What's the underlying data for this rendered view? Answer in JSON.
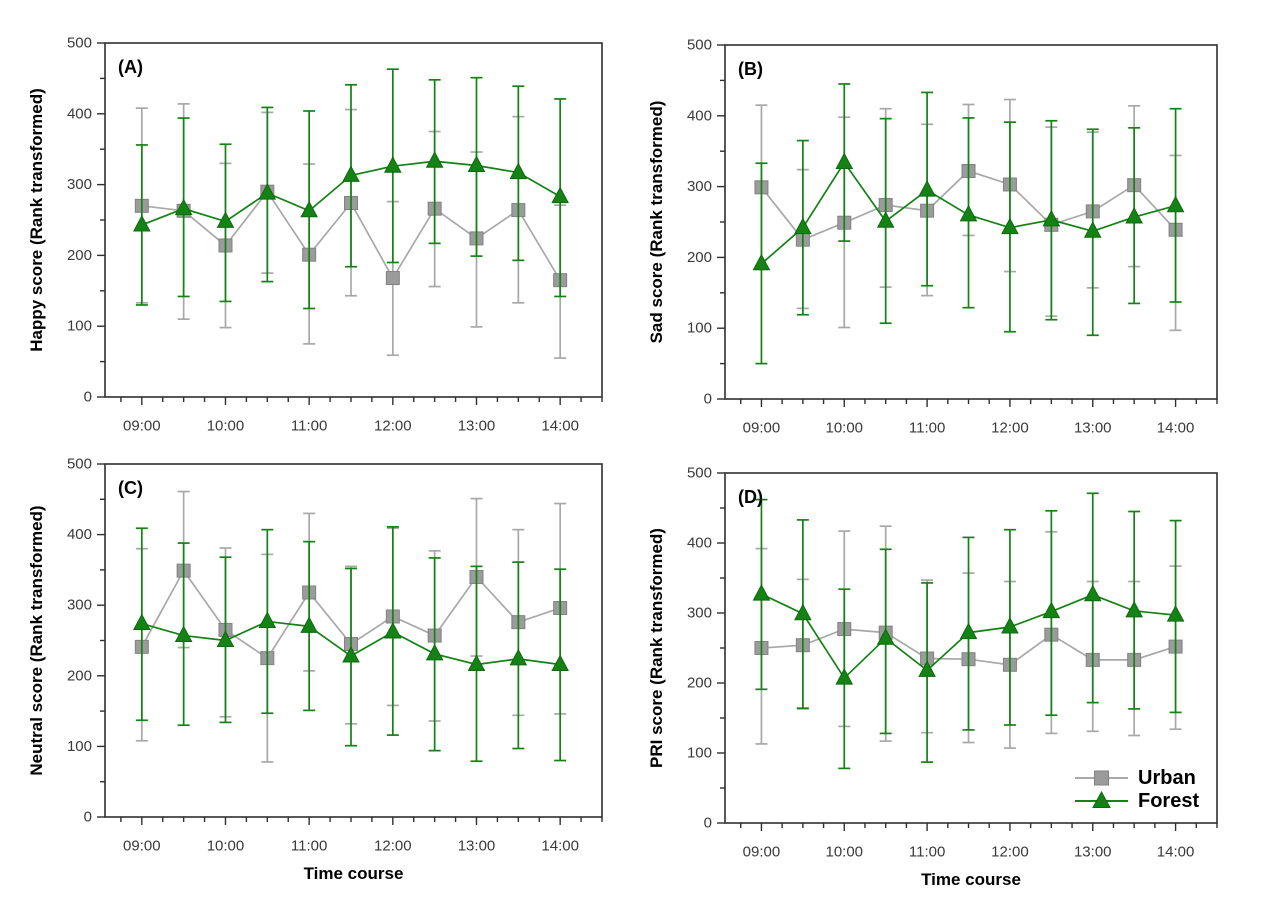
{
  "figure": {
    "background": "#ffffff",
    "colors": {
      "urban": "#9b9b9b",
      "urban_edge": "#828282",
      "forest": "#148214",
      "forest_edge": "#0d6b0d",
      "axis": "#2f2f2f",
      "tick_text": "#3a3a3a",
      "label_text": "#000000"
    },
    "legend": {
      "position": "inside-panel-D-bottom-right",
      "items": [
        {
          "label": "Urban",
          "marker": "square",
          "color": "#9b9b9b"
        },
        {
          "label": "Forest",
          "marker": "triangle",
          "color": "#148214"
        }
      ]
    }
  },
  "chart_data": [
    {
      "type": "line",
      "panel_label": "(A)",
      "ylabel": "Happy score (Rank transformed)",
      "xlabel": "",
      "show_legend": false,
      "ylim": [
        0,
        500
      ],
      "yticks": [
        0,
        100,
        200,
        300,
        400,
        500
      ],
      "x_tick_labels": [
        "09:00",
        "10:00",
        "11:00",
        "12:00",
        "13:00",
        "14:00"
      ],
      "categories": [
        "09:00",
        "09:30",
        "10:00",
        "10:30",
        "11:00",
        "11:30",
        "12:00",
        "12:30",
        "13:00",
        "13:30",
        "14:00"
      ],
      "series": [
        {
          "name": "Urban",
          "marker": "square",
          "color": "#9b9b9b",
          "values": [
            270,
            263,
            214,
            290,
            201,
            274,
            168,
            266,
            224,
            264,
            165
          ],
          "err_low": [
            133,
            110,
            98,
            175,
            75,
            143,
            59,
            156,
            99,
            133,
            55
          ],
          "err_high": [
            408,
            414,
            330,
            402,
            329,
            406,
            276,
            375,
            346,
            396,
            271
          ]
        },
        {
          "name": "Forest",
          "marker": "triangle",
          "color": "#148214",
          "values": [
            243,
            266,
            248,
            288,
            263,
            313,
            326,
            333,
            327,
            317,
            283
          ],
          "err_low": [
            130,
            142,
            135,
            163,
            125,
            184,
            190,
            217,
            199,
            193,
            142
          ],
          "err_high": [
            356,
            394,
            357,
            409,
            404,
            441,
            463,
            448,
            451,
            439,
            421
          ]
        }
      ]
    },
    {
      "type": "line",
      "panel_label": "(B)",
      "ylabel": "Sad score (Rank transformed)",
      "xlabel": "",
      "show_legend": false,
      "ylim": [
        0,
        500
      ],
      "yticks": [
        0,
        100,
        200,
        300,
        400,
        500
      ],
      "x_tick_labels": [
        "09:00",
        "10:00",
        "11:00",
        "12:00",
        "13:00",
        "14:00"
      ],
      "categories": [
        "09:00",
        "09:30",
        "10:00",
        "10:30",
        "11:00",
        "11:30",
        "12:00",
        "12:30",
        "13:00",
        "13:30",
        "14:00"
      ],
      "series": [
        {
          "name": "Urban",
          "marker": "square",
          "color": "#9b9b9b",
          "values": [
            299,
            225,
            249,
            274,
            266,
            322,
            303,
            246,
            265,
            302,
            239
          ],
          "err_low": [
            183,
            128,
            101,
            158,
            146,
            231,
            180,
            117,
            157,
            187,
            97
          ],
          "err_high": [
            415,
            324,
            398,
            410,
            388,
            416,
            423,
            384,
            377,
            414,
            344
          ]
        },
        {
          "name": "Forest",
          "marker": "triangle",
          "color": "#148214",
          "values": [
            191,
            242,
            334,
            251,
            295,
            260,
            242,
            253,
            237,
            257,
            273
          ],
          "err_low": [
            50,
            119,
            223,
            107,
            160,
            129,
            95,
            112,
            90,
            135,
            137
          ],
          "err_high": [
            333,
            365,
            445,
            396,
            433,
            397,
            391,
            393,
            381,
            383,
            410
          ]
        }
      ]
    },
    {
      "type": "line",
      "panel_label": "(C)",
      "ylabel": "Neutral score (Rank transformed)",
      "xlabel": "Time course",
      "show_legend": false,
      "ylim": [
        0,
        500
      ],
      "yticks": [
        0,
        100,
        200,
        300,
        400,
        500
      ],
      "x_tick_labels": [
        "09:00",
        "10:00",
        "11:00",
        "12:00",
        "13:00",
        "14:00"
      ],
      "categories": [
        "09:00",
        "09:30",
        "10:00",
        "10:30",
        "11:00",
        "11:30",
        "12:00",
        "12:30",
        "13:00",
        "13:30",
        "14:00"
      ],
      "series": [
        {
          "name": "Urban",
          "marker": "square",
          "color": "#9b9b9b",
          "values": [
            241,
            349,
            265,
            225,
            318,
            245,
            284,
            257,
            340,
            276,
            296
          ],
          "err_low": [
            108,
            240,
            142,
            78,
            207,
            132,
            158,
            136,
            228,
            144,
            146
          ],
          "err_high": [
            380,
            461,
            381,
            372,
            430,
            355,
            409,
            377,
            451,
            407,
            444
          ]
        },
        {
          "name": "Forest",
          "marker": "triangle",
          "color": "#148214",
          "values": [
            274,
            257,
            250,
            277,
            270,
            228,
            262,
            231,
            216,
            224,
            216
          ],
          "err_low": [
            137,
            130,
            134,
            147,
            151,
            101,
            116,
            94,
            79,
            97,
            80
          ],
          "err_high": [
            409,
            388,
            368,
            407,
            390,
            352,
            411,
            367,
            355,
            361,
            351
          ]
        }
      ]
    },
    {
      "type": "line",
      "panel_label": "(D)",
      "ylabel": "PRI score (Rank transformed)",
      "xlabel": "Time course",
      "show_legend": true,
      "ylim": [
        0,
        500
      ],
      "yticks": [
        0,
        100,
        200,
        300,
        400,
        500
      ],
      "x_tick_labels": [
        "09:00",
        "10:00",
        "11:00",
        "12:00",
        "13:00",
        "14:00"
      ],
      "categories": [
        "09:00",
        "09:30",
        "10:00",
        "10:30",
        "11:00",
        "11:30",
        "12:00",
        "12:30",
        "13:00",
        "13:30",
        "14:00"
      ],
      "series": [
        {
          "name": "Urban",
          "marker": "square",
          "color": "#9b9b9b",
          "values": [
            250,
            254,
            277,
            272,
            235,
            234,
            226,
            269,
            233,
            233,
            252
          ],
          "err_low": [
            113,
            163,
            138,
            117,
            129,
            115,
            107,
            128,
            131,
            125,
            134
          ],
          "err_high": [
            392,
            348,
            417,
            424,
            347,
            357,
            345,
            416,
            345,
            345,
            367
          ]
        },
        {
          "name": "Forest",
          "marker": "triangle",
          "color": "#148214",
          "values": [
            327,
            299,
            207,
            264,
            218,
            272,
            280,
            302,
            326,
            303,
            297
          ],
          "err_low": [
            191,
            164,
            78,
            128,
            87,
            133,
            140,
            154,
            172,
            163,
            158
          ],
          "err_high": [
            462,
            433,
            334,
            391,
            343,
            408,
            419,
            446,
            471,
            445,
            432
          ]
        }
      ]
    }
  ]
}
